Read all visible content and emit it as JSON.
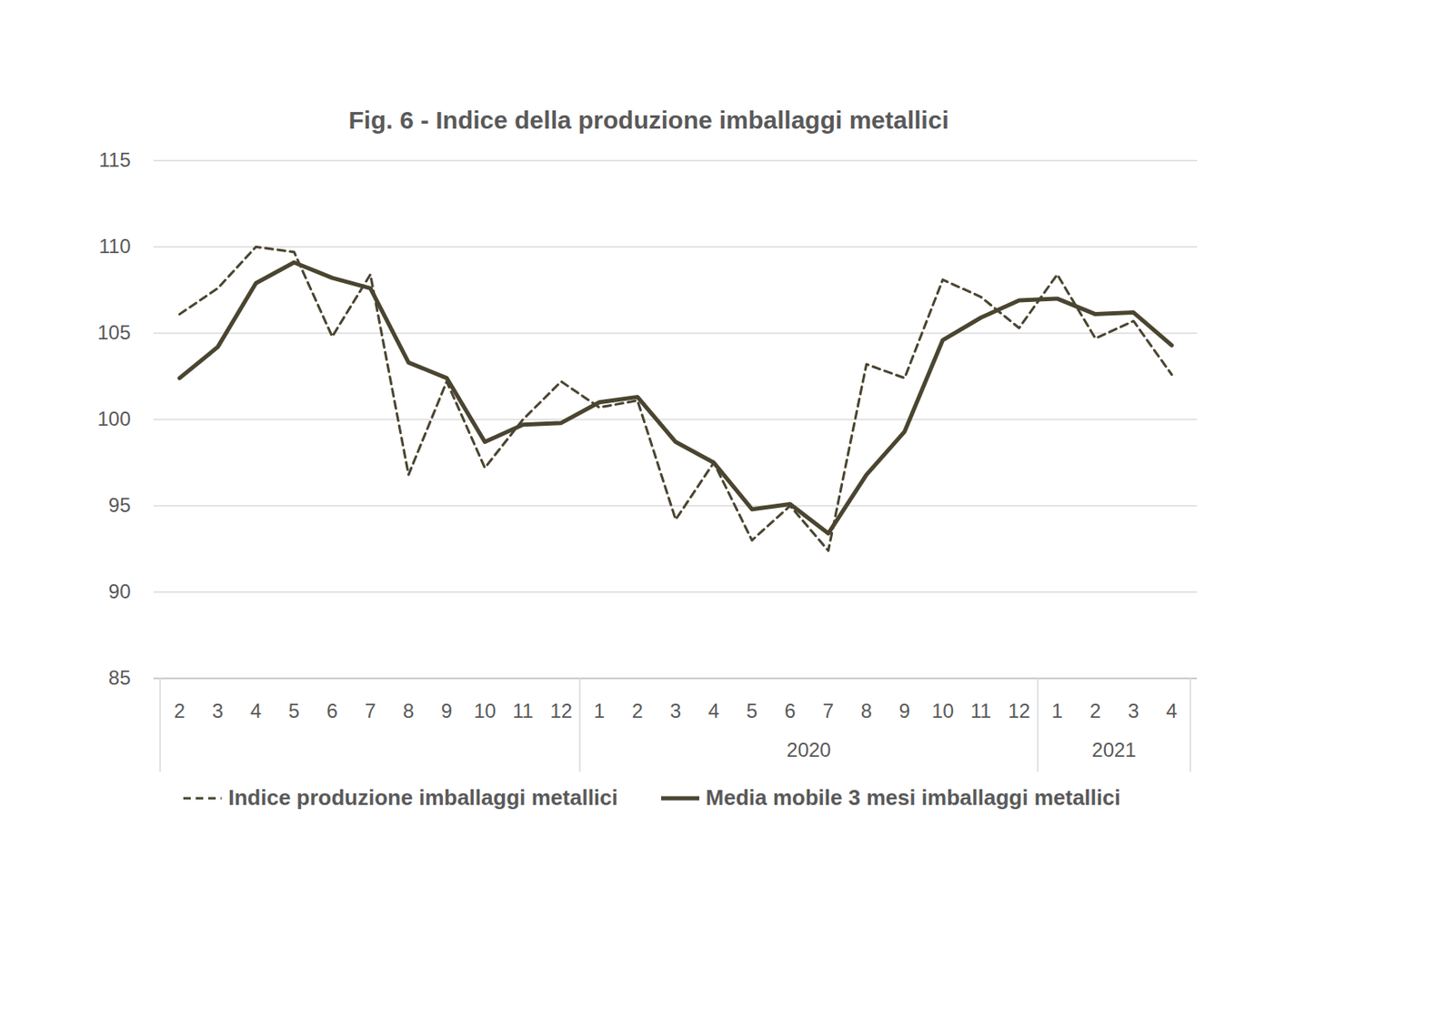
{
  "chart_data": {
    "type": "line",
    "title": "Fig. 6 - Indice della produzione imballaggi metallici",
    "categories": [
      "2",
      "3",
      "4",
      "5",
      "6",
      "7",
      "8",
      "9",
      "10",
      "11",
      "12",
      "1",
      "2",
      "3",
      "4",
      "5",
      "6",
      "7",
      "8",
      "9",
      "10",
      "11",
      "12",
      "1",
      "2",
      "3",
      "4"
    ],
    "category_groups": [
      {
        "label": null,
        "size": 11
      },
      {
        "label": "2020",
        "size": 12
      },
      {
        "label": "2021",
        "size": 4
      }
    ],
    "series": [
      {
        "name": "Indice produzione imballaggi metallici",
        "color": "#4a4530",
        "line_style": "dashed",
        "values": [
          106.1,
          107.6,
          110.0,
          109.7,
          104.8,
          108.4,
          96.8,
          102.2,
          97.2,
          100.0,
          102.2,
          100.7,
          101.1,
          94.2,
          97.5,
          93.0,
          95.0,
          92.4,
          103.2,
          102.4,
          108.1,
          107.1,
          105.3,
          108.4,
          104.7,
          105.7,
          102.6
        ]
      },
      {
        "name": "Media mobile 3 mesi imballaggi metallici",
        "color": "#4a4530",
        "line_style": "solid",
        "values": [
          102.4,
          104.2,
          107.9,
          109.1,
          108.2,
          107.6,
          103.3,
          102.4,
          98.7,
          99.7,
          99.8,
          101.0,
          101.3,
          98.7,
          97.5,
          94.8,
          95.1,
          93.4,
          96.8,
          99.3,
          104.6,
          105.9,
          106.9,
          107.0,
          106.1,
          106.2,
          104.3
        ]
      }
    ],
    "ylim": [
      85,
      115
    ],
    "yticks": [
      85,
      90,
      95,
      100,
      105,
      110,
      115
    ],
    "grid": true,
    "legend": "bottom"
  }
}
